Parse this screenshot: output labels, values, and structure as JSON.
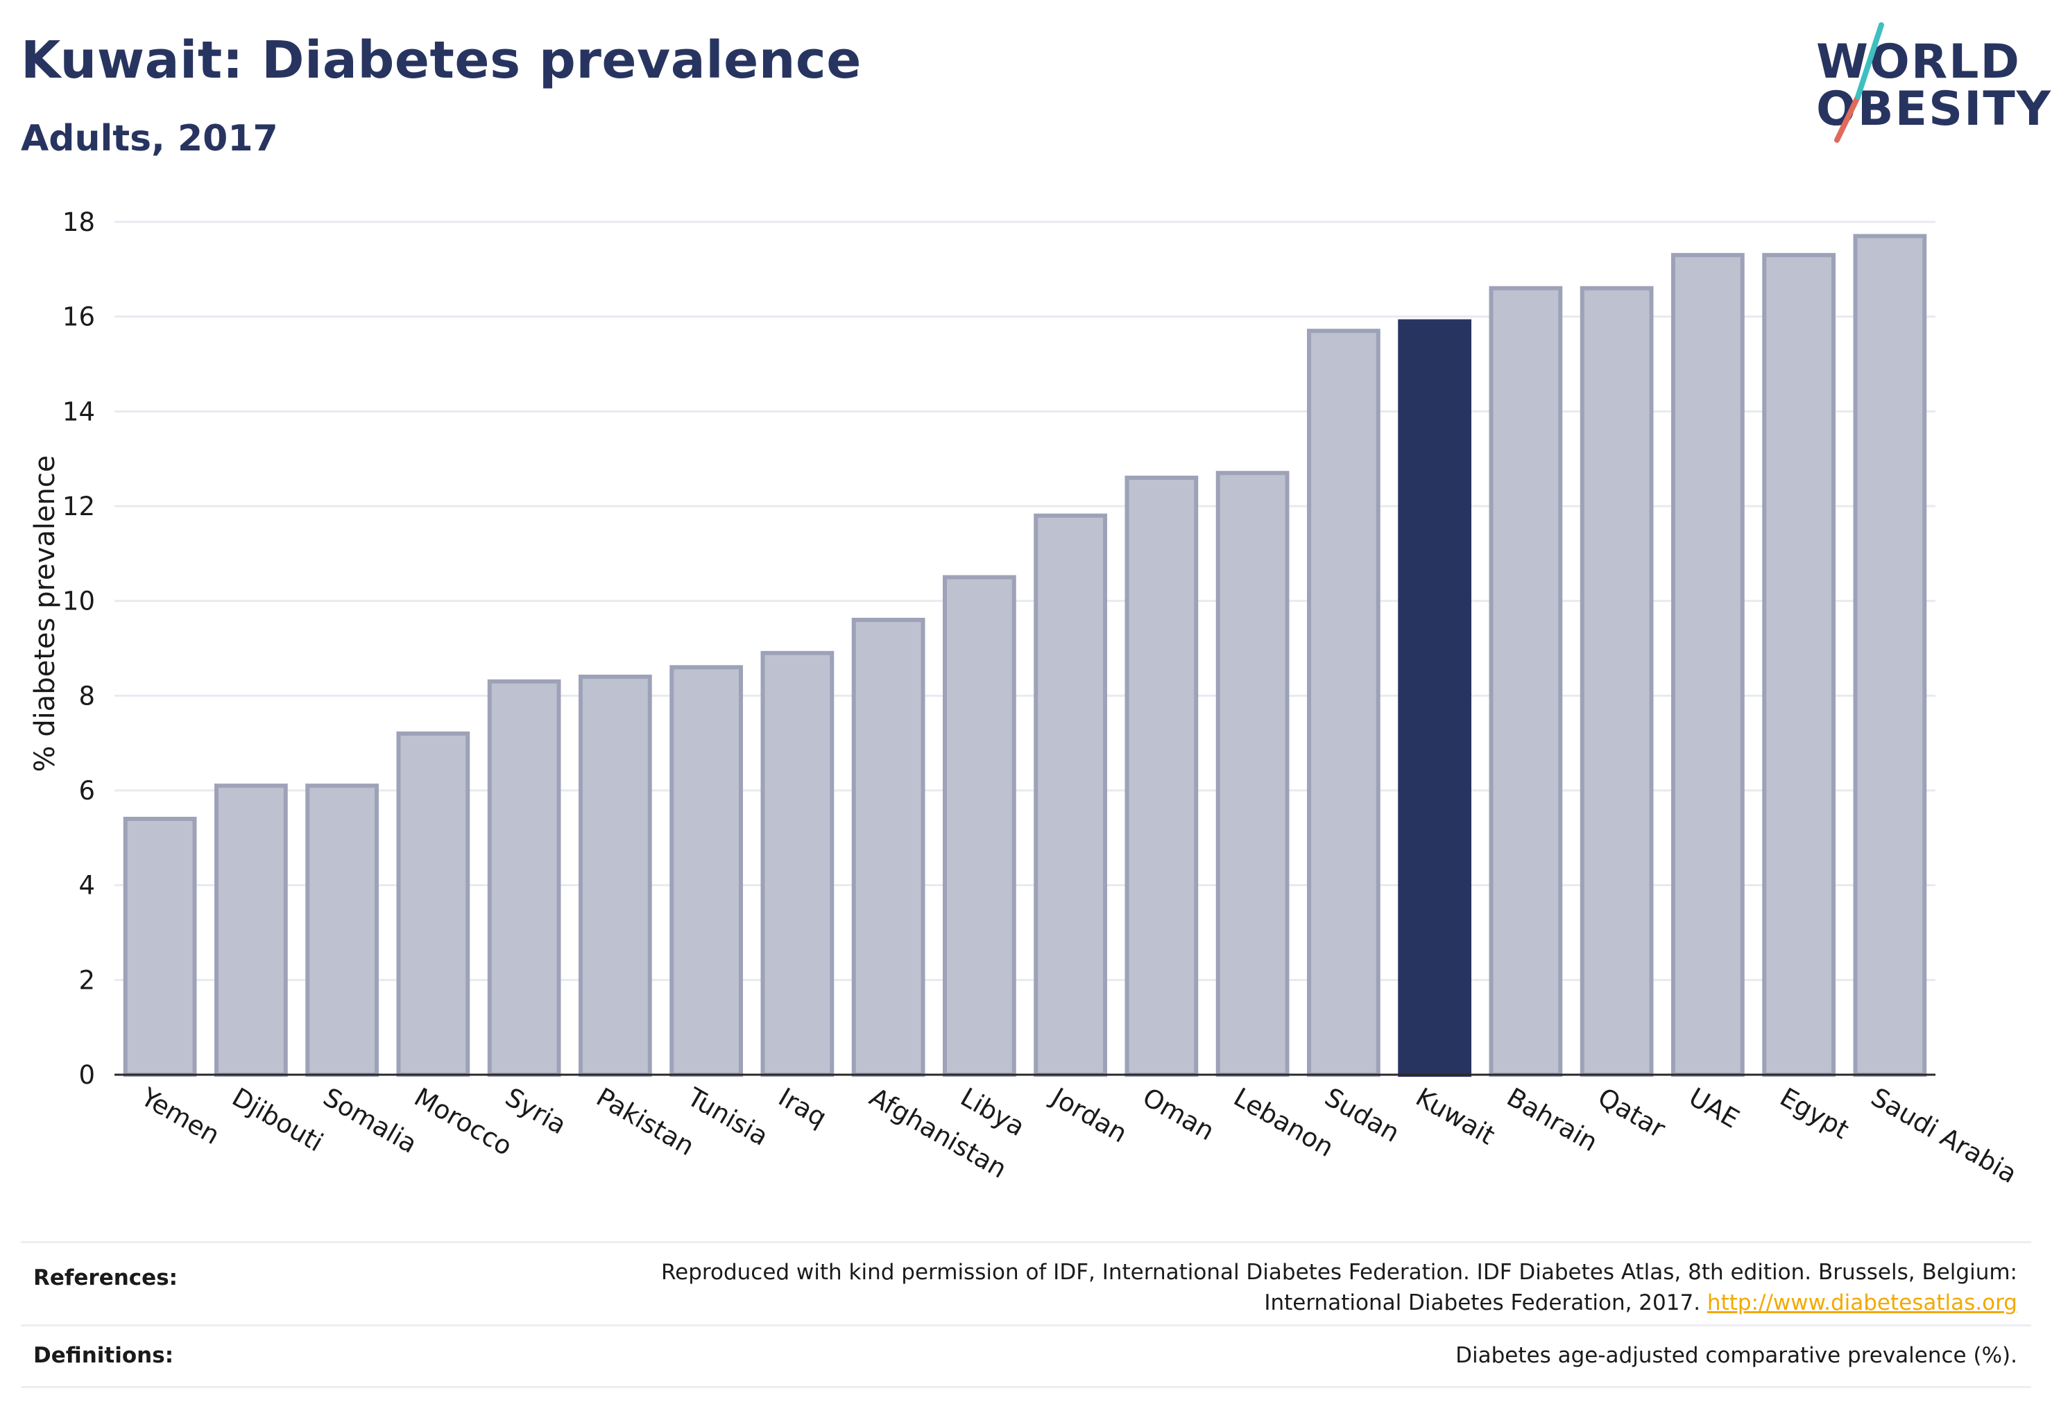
{
  "header": {
    "title": "Kuwait: Diabetes prevalence",
    "subtitle": "Adults, 2017"
  },
  "logo": {
    "line1": "WORLD",
    "line2": "OBESITY",
    "brand_color": "#283460",
    "slash_colors": [
      "#e06a5c",
      "#3fbfbf"
    ]
  },
  "chart_data": {
    "type": "bar",
    "title": "Kuwait: Diabetes prevalence",
    "subtitle": "Adults, 2017",
    "xlabel": "",
    "ylabel": "% diabetes prevalence",
    "ylim": [
      0,
      18
    ],
    "yticks": [
      0,
      2,
      4,
      6,
      8,
      10,
      12,
      14,
      16,
      18
    ],
    "grid": true,
    "highlight": "Kuwait",
    "colors": {
      "default": "#bec1cf",
      "default_border": "#9da2b8",
      "highlight": "#283460"
    },
    "categories": [
      "Yemen",
      "Djibouti",
      "Somalia",
      "Morocco",
      "Syria",
      "Pakistan",
      "Tunisia",
      "Iraq",
      "Afghanistan",
      "Libya",
      "Jordan",
      "Oman",
      "Lebanon",
      "Sudan",
      "Kuwait",
      "Bahrain",
      "Qatar",
      "UAE",
      "Egypt",
      "Saudi Arabia"
    ],
    "values": [
      5.4,
      6.1,
      6.1,
      7.2,
      8.3,
      8.4,
      8.6,
      8.9,
      9.6,
      10.5,
      11.8,
      12.6,
      12.7,
      15.7,
      15.9,
      16.6,
      16.6,
      17.3,
      17.3,
      17.7
    ]
  },
  "footer": {
    "references_label": "References:",
    "references_line1": "Reproduced with kind permission of IDF, International Diabetes Federation. IDF Diabetes Atlas, 8th edition. Brussels, Belgium:",
    "references_line2": "International Diabetes Federation, 2017.",
    "references_link": "http://www.diabetesatlas.org",
    "definitions_label": "Definitions:",
    "definitions_text": "Diabetes age-adjusted comparative prevalence (%)."
  }
}
